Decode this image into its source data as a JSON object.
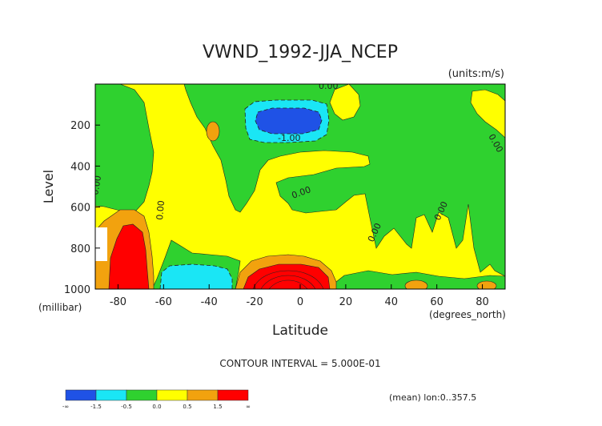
{
  "chart_data": {
    "type": "contour",
    "title": "VWND_1992-JJA_NCEP",
    "units": "(units:m/s)",
    "xlabel": "Latitude",
    "xunits": "(degrees_north)",
    "ylabel": "Level",
    "yunits": "(millibar)",
    "xlim": [
      -90,
      90
    ],
    "ylim": [
      1000,
      0
    ],
    "x_ticks": [
      -80,
      -60,
      -40,
      -20,
      0,
      20,
      40,
      60,
      80
    ],
    "y_ticks": [
      200,
      400,
      600,
      800,
      1000
    ],
    "contour_labels": [
      {
        "text": "0.00",
        "lat": 8,
        "level": 10
      },
      {
        "text": "-1.00",
        "lat": -2,
        "level": 262
      },
      {
        "text": "0.00",
        "lat": 84,
        "level": 250
      },
      {
        "text": "0.00",
        "lat": -89,
        "level": 430
      },
      {
        "text": "0.00",
        "lat": -62,
        "level": 590
      },
      {
        "text": "0.00",
        "lat": 3,
        "level": 520
      },
      {
        "text": "0.00",
        "lat": 32,
        "level": 720
      },
      {
        "text": "0.00",
        "lat": 58,
        "level": 610
      }
    ],
    "contour_interval_text": "CONTOUR INTERVAL = 5.000E-01",
    "mean_text": "(mean) lon:0..357.5",
    "colorbar": {
      "colors": [
        "#1f52e6",
        "#1ae6f5",
        "#2fd12f",
        "#ffff00",
        "#f2a20e",
        "#ff0000"
      ],
      "tick_labels": [
        "-∞",
        "-1.5",
        "-0.5",
        "0.0",
        "0.5",
        "1.5",
        "∞"
      ]
    },
    "regions": [
      {
        "band": "<-1.5",
        "color": "#1f52e6",
        "location": "-20..10 lat, 120..230 mb"
      },
      {
        "band": "-1.5..-0.5",
        "color": "#1ae6f5",
        "location": "-25..15 lat, 110..270 mb; -60..-30 lat, 890..1000 mb"
      },
      {
        "band": "0.5..1.5",
        "color": "#f2a20e",
        "location": "-85..-60 lat, 620..1000 mb; -30..20 lat, 800..1000 mb"
      },
      {
        "band": ">1.5",
        "color": "#ff0000",
        "location": "-85..-70 lat, 700..1000 mb; -25..10 lat, 850..1000 mb"
      }
    ]
  }
}
